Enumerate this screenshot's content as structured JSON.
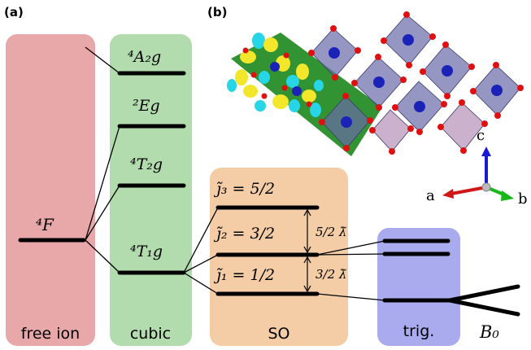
{
  "panels": {
    "a_label": "(a)",
    "b_label": "(b)"
  },
  "columns": {
    "free_ion": "free ion",
    "cubic": "cubic",
    "so": "SO",
    "trig": "trig."
  },
  "levels": {
    "free_ion_term": "⁴F",
    "cubic_A2g": "⁴A₂g",
    "cubic_Eg": "²Eg",
    "cubic_T2g": "⁴T₂g",
    "cubic_T1g": "⁴T₁g",
    "so_j3": "j̃₃ = 5/2",
    "so_j2": "j̃₂ = 3/2",
    "so_j1": "j̃₁ = 1/2",
    "gap_upper": "5/2 λ̃",
    "gap_lower": "3/2 λ̃",
    "field": "B₀"
  },
  "axes": {
    "a": "a",
    "b": "b",
    "c": "c"
  },
  "colors": {
    "free_ion_bg": "#e8a7a9",
    "cubic_bg": "#b3dcae",
    "so_bg": "#f4cda6",
    "trig_bg": "#aaaaee",
    "plane_green": "#1f8a1f",
    "octahedron": "#6a6aa8",
    "atom_blue": "#1a22b8",
    "atom_red": "#e01010",
    "orbital_yellow": "#f2e72a",
    "orbital_cyan": "#27d6e6"
  }
}
